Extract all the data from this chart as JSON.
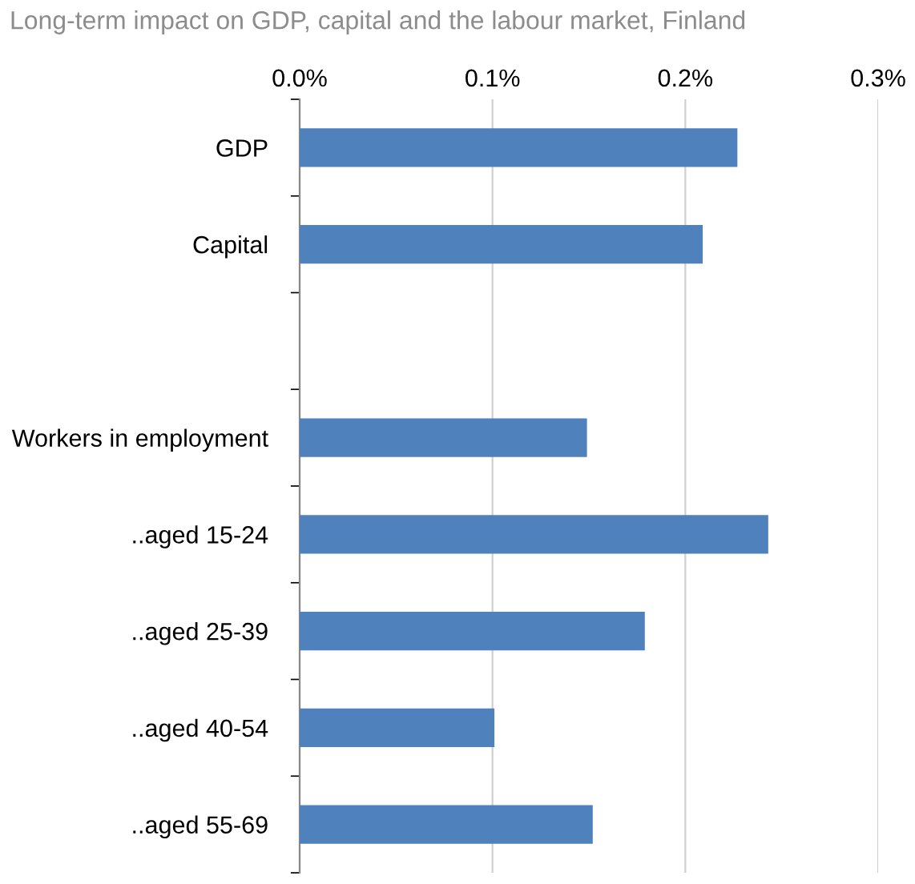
{
  "chart_data": {
    "type": "bar",
    "orientation": "horizontal",
    "title": "Long-term impact on GDP, capital and the labour market, Finland",
    "categories": [
      "GDP",
      "Capital",
      null,
      "Workers in employment",
      "..aged 15-24",
      "..aged 25-39",
      "..aged 40-54",
      "..aged 55-69"
    ],
    "values": [
      0.227,
      0.209,
      null,
      0.149,
      0.243,
      0.179,
      0.101,
      0.152
    ],
    "color": "#4f81bd",
    "xlim": [
      0,
      0.3
    ],
    "xticks": [
      {
        "value": 0,
        "label": "0.0%"
      },
      {
        "value": 0.1,
        "label": "0.1%"
      },
      {
        "value": 0.2,
        "label": "0.2%"
      },
      {
        "value": 0.3,
        "label": "0.3%"
      }
    ],
    "grid": "x",
    "legend": false
  }
}
